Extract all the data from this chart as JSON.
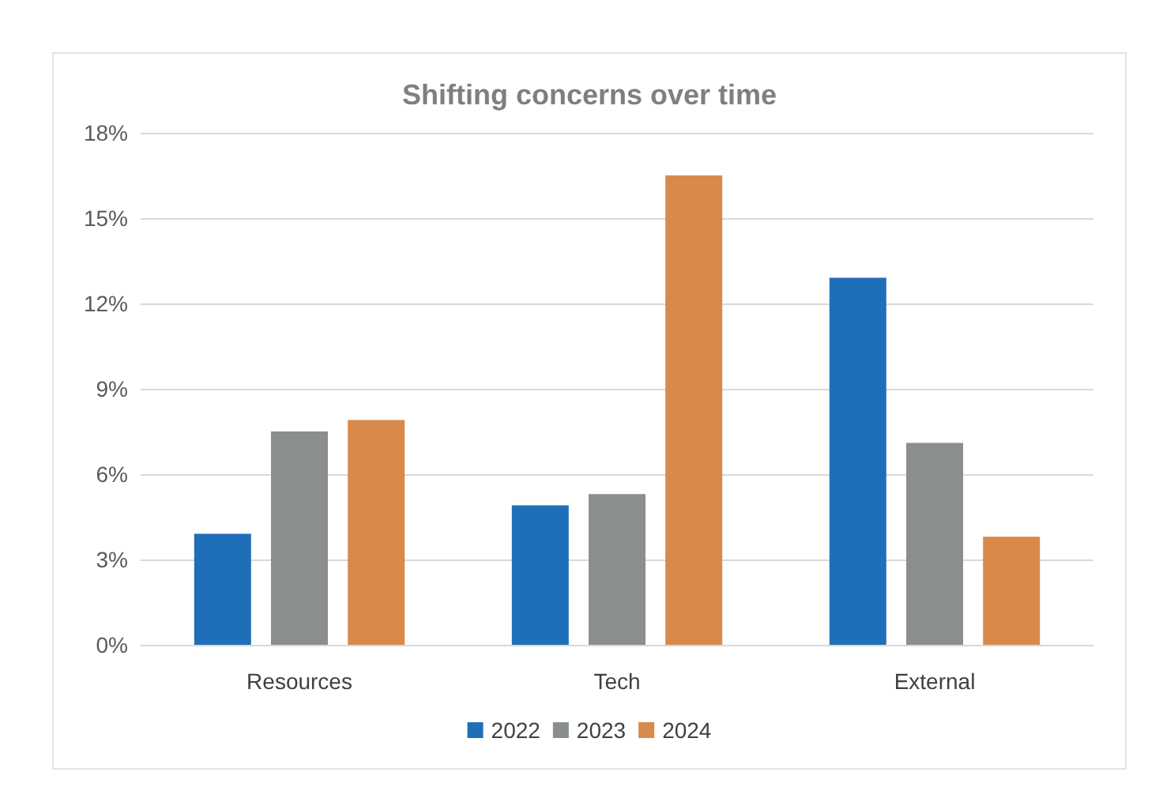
{
  "chart_data": {
    "type": "bar",
    "title": "Shifting concerns over time",
    "categories": [
      "Resources",
      "Tech",
      "External"
    ],
    "series": [
      {
        "name": "2022",
        "color": "#1f6fb8",
        "values": [
          3.9,
          4.9,
          12.9
        ]
      },
      {
        "name": "2023",
        "color": "#8a8f8e",
        "values": [
          7.5,
          5.3,
          7.1
        ]
      },
      {
        "name": "2024",
        "color": "#d9894a",
        "values": [
          7.9,
          16.5,
          3.8
        ]
      }
    ],
    "ylim": [
      0,
      18
    ],
    "yticks": [
      {
        "value": 0,
        "label": "0%"
      },
      {
        "value": 3,
        "label": "3%"
      },
      {
        "value": 6,
        "label": "6%"
      },
      {
        "value": 9,
        "label": "9%"
      },
      {
        "value": 12,
        "label": "12%"
      },
      {
        "value": 15,
        "label": "15%"
      },
      {
        "value": 18,
        "label": "18%"
      }
    ],
    "grid": "y",
    "legend": "bottom"
  }
}
